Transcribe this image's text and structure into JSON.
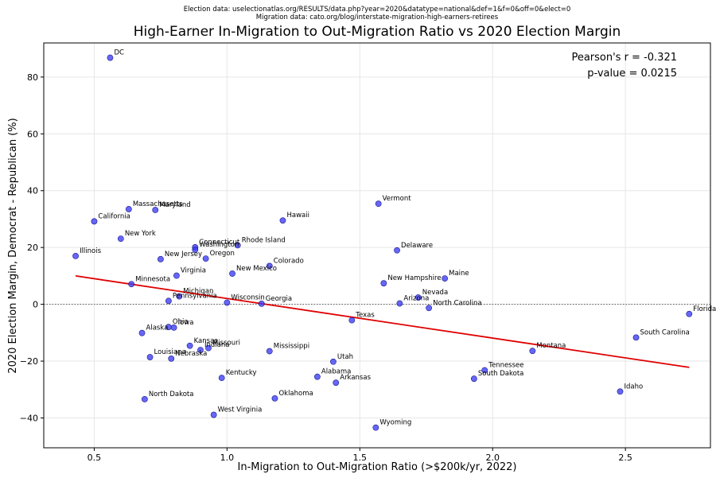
{
  "source_lines": [
    "Election data: uselectionatlas.org/RESULTS/data.php?year=2020&datatype=national&def=1&f=0&off=0&elect=0",
    "Migration data: cato.org/blog/interstate-migration-high-earners-retirees"
  ],
  "stats": {
    "pearson": "Pearson's r = -0.321",
    "pvalue": "p-value = 0.0215"
  },
  "chart_data": {
    "type": "scatter",
    "title": "High-Earner In-Migration to Out-Migration Ratio vs 2020 Election Margin",
    "xlabel": "In-Migration to Out-Migration Ratio (>$200k/yr, 2022)",
    "ylabel": "2020 Election Margin, Democrat - Republican (%)",
    "xlim": [
      0.31,
      2.82
    ],
    "ylim": [
      -50.5,
      92
    ],
    "xticks": [
      0.5,
      1.0,
      1.5,
      2.0,
      2.5
    ],
    "xtick_labels": [
      "0.5",
      "1.0",
      "1.5",
      "2.0",
      "2.5"
    ],
    "yticks": [
      -40,
      -20,
      0,
      20,
      40,
      60,
      80
    ],
    "ytick_labels": [
      "−40",
      "−20",
      "0",
      "20",
      "40",
      "60",
      "80"
    ],
    "grid": true,
    "zero_line": true,
    "point_color": "#3b3bf5",
    "fit_color": "#e00000",
    "fit_line": {
      "x": [
        0.43,
        2.74
      ],
      "y": [
        10.0,
        -22.2
      ]
    },
    "points": [
      {
        "label": "DC",
        "x": 0.56,
        "y": 86.8
      },
      {
        "label": "Massachusetts",
        "x": 0.63,
        "y": 33.5
      },
      {
        "label": "Maryland",
        "x": 0.73,
        "y": 33.2
      },
      {
        "label": "California",
        "x": 0.5,
        "y": 29.2
      },
      {
        "label": "New York",
        "x": 0.6,
        "y": 23.1
      },
      {
        "label": "Illinois",
        "x": 0.43,
        "y": 17.0
      },
      {
        "label": "New Jersey",
        "x": 0.75,
        "y": 15.9
      },
      {
        "label": "Connecticut",
        "x": 0.88,
        "y": 20.1
      },
      {
        "label": "Washington",
        "x": 0.88,
        "y": 19.2
      },
      {
        "label": "Rhode Island",
        "x": 1.04,
        "y": 20.8
      },
      {
        "label": "Oregon",
        "x": 0.92,
        "y": 16.1
      },
      {
        "label": "Virginia",
        "x": 0.81,
        "y": 10.1
      },
      {
        "label": "New Mexico",
        "x": 1.02,
        "y": 10.8
      },
      {
        "label": "Colorado",
        "x": 1.16,
        "y": 13.5
      },
      {
        "label": "Hawaii",
        "x": 1.21,
        "y": 29.5
      },
      {
        "label": "Vermont",
        "x": 1.57,
        "y": 35.4
      },
      {
        "label": "Delaware",
        "x": 1.64,
        "y": 19.0
      },
      {
        "label": "Maine",
        "x": 1.82,
        "y": 9.1
      },
      {
        "label": "New Hampshire",
        "x": 1.59,
        "y": 7.4
      },
      {
        "label": "Nevada",
        "x": 1.72,
        "y": 2.4
      },
      {
        "label": "Arizona",
        "x": 1.65,
        "y": 0.3
      },
      {
        "label": "North Carolina",
        "x": 1.76,
        "y": -1.3
      },
      {
        "label": "Minnesota",
        "x": 0.64,
        "y": 7.1
      },
      {
        "label": "Michigan",
        "x": 0.82,
        "y": 2.8
      },
      {
        "label": "Pennsylvania",
        "x": 0.78,
        "y": 1.2
      },
      {
        "label": "Wisconsin",
        "x": 1.0,
        "y": 0.6
      },
      {
        "label": "Georgia",
        "x": 1.13,
        "y": 0.2
      },
      {
        "label": "Texas",
        "x": 1.47,
        "y": -5.6
      },
      {
        "label": "Florida",
        "x": 2.74,
        "y": -3.4
      },
      {
        "label": "South Carolina",
        "x": 2.54,
        "y": -11.7
      },
      {
        "label": "Ohio",
        "x": 0.78,
        "y": -8.0
      },
      {
        "label": "Iowa",
        "x": 0.8,
        "y": -8.2
      },
      {
        "label": "Alaska",
        "x": 0.68,
        "y": -10.1
      },
      {
        "label": "Kansas",
        "x": 0.86,
        "y": -14.6
      },
      {
        "label": "Missouri",
        "x": 0.93,
        "y": -15.4
      },
      {
        "label": "Indiana",
        "x": 0.9,
        "y": -16.1
      },
      {
        "label": "Louisiana",
        "x": 0.71,
        "y": -18.6
      },
      {
        "label": "Nebraska",
        "x": 0.79,
        "y": -19.1
      },
      {
        "label": "Mississippi",
        "x": 1.16,
        "y": -16.5
      },
      {
        "label": "Utah",
        "x": 1.4,
        "y": -20.2
      },
      {
        "label": "Montana",
        "x": 2.15,
        "y": -16.4
      },
      {
        "label": "Tennessee",
        "x": 1.97,
        "y": -23.2
      },
      {
        "label": "South Dakota",
        "x": 1.93,
        "y": -26.2
      },
      {
        "label": "Kentucky",
        "x": 0.98,
        "y": -25.9
      },
      {
        "label": "Alabama",
        "x": 1.34,
        "y": -25.5
      },
      {
        "label": "Arkansas",
        "x": 1.41,
        "y": -27.6
      },
      {
        "label": "Idaho",
        "x": 2.48,
        "y": -30.7
      },
      {
        "label": "North Dakota",
        "x": 0.69,
        "y": -33.4
      },
      {
        "label": "Oklahoma",
        "x": 1.18,
        "y": -33.1
      },
      {
        "label": "West Virginia",
        "x": 0.95,
        "y": -38.9
      },
      {
        "label": "Wyoming",
        "x": 1.56,
        "y": -43.4
      }
    ]
  }
}
